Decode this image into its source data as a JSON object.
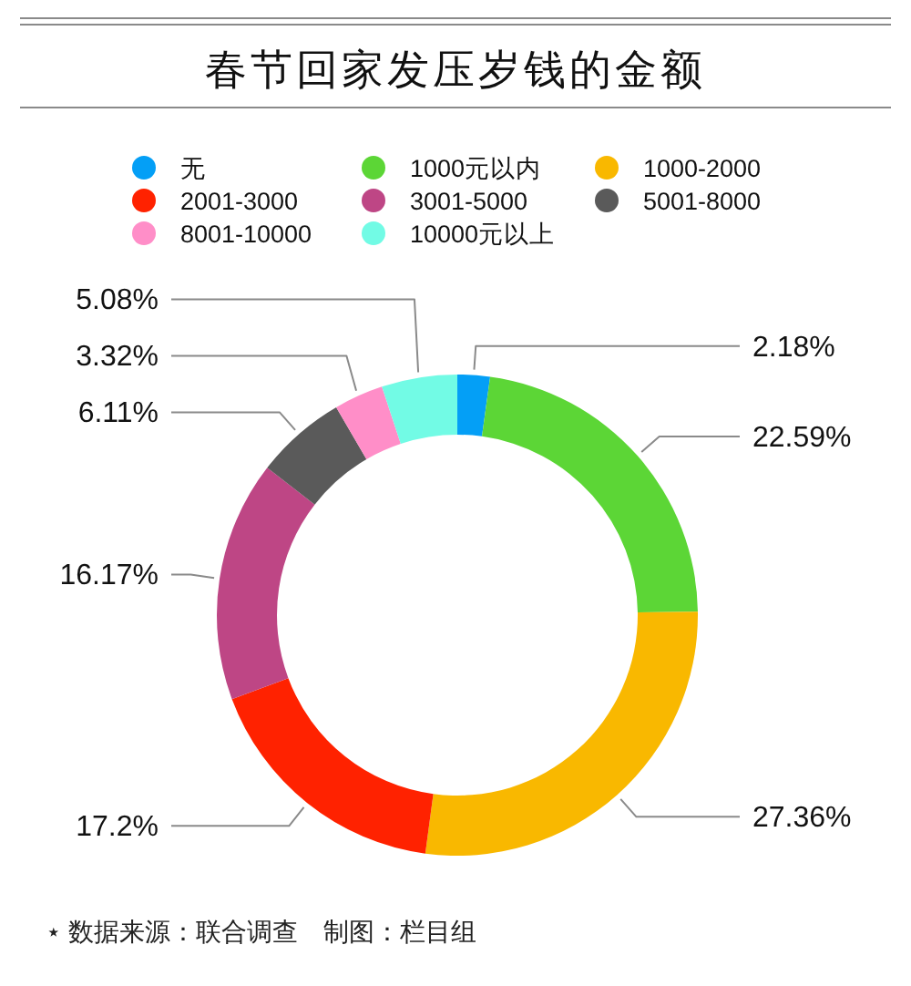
{
  "chart_data": {
    "type": "donut",
    "title": "春节回家发压岁钱的金额",
    "categories": [
      "无",
      "1000元以内",
      "1000-2000",
      "2001-3000",
      "3001-5000",
      "5001-8000",
      "8001-10000",
      "10000元以上"
    ],
    "values": [
      2.18,
      22.59,
      27.36,
      17.2,
      16.17,
      6.11,
      3.32,
      5.08
    ],
    "colors": [
      "#049ff6",
      "#5cd636",
      "#f9b800",
      "#ff2200",
      "#be4685",
      "#5a5a5a",
      "#ff8ec8",
      "#72fbe5"
    ],
    "value_labels": [
      "2.18%",
      "22.59%",
      "27.36%",
      "17.2%",
      "16.17%",
      "6.11%",
      "3.32%",
      "5.08%"
    ],
    "legend": "top",
    "annotations": [
      "⋆ 数据来源：联合调查　制图：栏目组"
    ]
  }
}
